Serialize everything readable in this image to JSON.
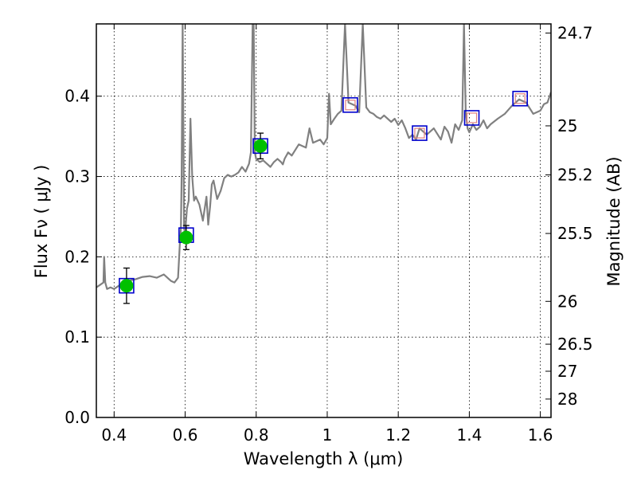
{
  "chart_data": {
    "type": "line",
    "xlabel": "Wavelength  λ (μm)",
    "ylabel": "Flux  Fν  ( μJy )",
    "ylabel_right": "Magnitude (AB)",
    "xlim": [
      0.35,
      1.63
    ],
    "ylim": [
      0.0,
      0.49
    ],
    "grid": true,
    "x_ticks": [
      0.4,
      0.6,
      0.8,
      1.0,
      1.2,
      1.4,
      1.6
    ],
    "x_tick_labels": [
      "0.4",
      "0.6",
      "0.8",
      "1",
      "1.2",
      "1.4",
      "1.6"
    ],
    "y_ticks": [
      0.0,
      0.1,
      0.2,
      0.3,
      0.4
    ],
    "y_tick_labels": [
      "0.0",
      "0.1",
      "0.2",
      "0.3",
      "0.4"
    ],
    "right_ticks": [
      {
        "label": "24.7",
        "value": 24.7
      },
      {
        "label": "25",
        "value": 25.0
      },
      {
        "label": "25.2",
        "value": 25.2
      },
      {
        "label": "25.5",
        "value": 25.5
      },
      {
        "label": "26",
        "value": 26.0
      },
      {
        "label": "26.5",
        "value": 26.5
      },
      {
        "label": "27",
        "value": 27.0
      },
      {
        "label": "28",
        "value": 28.0
      }
    ],
    "series": [
      {
        "style": "line",
        "color": "#808080",
        "x": [
          0.35,
          0.36,
          0.37,
          0.372,
          0.375,
          0.38,
          0.39,
          0.4,
          0.42,
          0.44,
          0.46,
          0.48,
          0.5,
          0.52,
          0.54,
          0.555,
          0.56,
          0.57,
          0.58,
          0.585,
          0.588,
          0.59,
          0.593,
          0.597,
          0.6,
          0.605,
          0.61,
          0.615,
          0.62,
          0.625,
          0.63,
          0.64,
          0.65,
          0.66,
          0.665,
          0.67,
          0.675,
          0.68,
          0.69,
          0.7,
          0.71,
          0.72,
          0.73,
          0.74,
          0.75,
          0.76,
          0.77,
          0.78,
          0.785,
          0.79,
          0.793,
          0.796,
          0.8,
          0.81,
          0.82,
          0.83,
          0.84,
          0.85,
          0.86,
          0.87,
          0.875,
          0.88,
          0.89,
          0.9,
          0.92,
          0.94,
          0.95,
          0.96,
          0.98,
          0.99,
          1.0,
          1.005,
          1.01,
          1.02,
          1.03,
          1.04,
          1.05,
          1.06,
          1.08,
          1.09,
          1.1,
          1.11,
          1.12,
          1.13,
          1.14,
          1.15,
          1.16,
          1.18,
          1.19,
          1.2,
          1.21,
          1.22,
          1.23,
          1.24,
          1.25,
          1.26,
          1.27,
          1.28,
          1.3,
          1.32,
          1.33,
          1.34,
          1.35,
          1.36,
          1.37,
          1.38,
          1.385,
          1.39,
          1.395,
          1.4,
          1.41,
          1.42,
          1.43,
          1.44,
          1.45,
          1.46,
          1.48,
          1.5,
          1.52,
          1.54,
          1.56,
          1.58,
          1.6,
          1.61,
          1.62,
          1.63
        ],
        "y": [
          0.162,
          0.165,
          0.168,
          0.2,
          0.168,
          0.16,
          0.162,
          0.16,
          0.166,
          0.17,
          0.172,
          0.175,
          0.176,
          0.174,
          0.178,
          0.172,
          0.17,
          0.168,
          0.174,
          0.215,
          0.235,
          0.3,
          0.49,
          0.235,
          0.23,
          0.26,
          0.27,
          0.372,
          0.3,
          0.27,
          0.275,
          0.265,
          0.245,
          0.275,
          0.24,
          0.262,
          0.29,
          0.295,
          0.272,
          0.282,
          0.298,
          0.302,
          0.3,
          0.302,
          0.305,
          0.312,
          0.306,
          0.316,
          0.33,
          0.49,
          0.49,
          0.33,
          0.322,
          0.318,
          0.32,
          0.316,
          0.312,
          0.318,
          0.322,
          0.318,
          0.315,
          0.322,
          0.33,
          0.326,
          0.34,
          0.336,
          0.36,
          0.342,
          0.346,
          0.34,
          0.348,
          0.403,
          0.365,
          0.372,
          0.378,
          0.382,
          0.49,
          0.392,
          0.388,
          0.38,
          0.49,
          0.386,
          0.38,
          0.378,
          0.374,
          0.372,
          0.376,
          0.368,
          0.372,
          0.364,
          0.37,
          0.36,
          0.348,
          0.352,
          0.346,
          0.36,
          0.356,
          0.352,
          0.36,
          0.346,
          0.362,
          0.356,
          0.342,
          0.365,
          0.358,
          0.37,
          0.49,
          0.38,
          0.36,
          0.355,
          0.365,
          0.358,
          0.362,
          0.37,
          0.36,
          0.365,
          0.372,
          0.378,
          0.388,
          0.396,
          0.392,
          0.378,
          0.382,
          0.39,
          0.392,
          0.405
        ]
      },
      {
        "style": "hollow-square",
        "color": "#0000cc",
        "x": [
          0.435,
          0.603,
          0.812,
          1.065,
          1.26,
          1.407,
          1.543
        ],
        "y": [
          0.164,
          0.227,
          0.338,
          0.389,
          0.354,
          0.373,
          0.397
        ]
      },
      {
        "style": "small-hollow-square",
        "color": "#e08080",
        "x": [
          1.065,
          1.26,
          1.407,
          1.543
        ],
        "y": [
          0.389,
          0.354,
          0.373,
          0.397
        ]
      },
      {
        "style": "filled-circle-errorbar",
        "color": "#00c000",
        "x": [
          0.435,
          0.603,
          0.812
        ],
        "y": [
          0.164,
          0.224,
          0.338
        ],
        "yerr": [
          0.022,
          0.015,
          0.016
        ]
      }
    ]
  }
}
